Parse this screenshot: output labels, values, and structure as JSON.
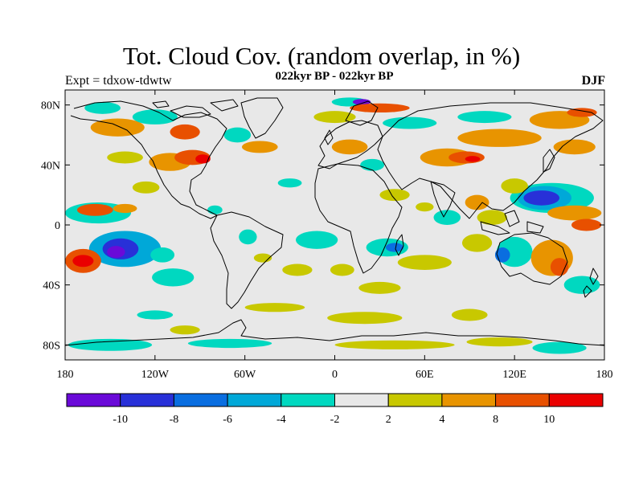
{
  "title": "Tot. Cloud Cov. (random overlap, in %)",
  "subtitle": "022kyr BP - 022kyr BP",
  "expt_label": "Expt = tdxow-tdwtw",
  "season": "DJF",
  "chart_data": {
    "type": "heatmap",
    "title": "Tot. Cloud Cov. (random overlap, in %)",
    "lon_range": [
      -180,
      180
    ],
    "lat_range": [
      -90,
      90
    ],
    "lat_ticks": [
      {
        "value": 80,
        "label": "80N"
      },
      {
        "value": 40,
        "label": "40N"
      },
      {
        "value": 0,
        "label": "0"
      },
      {
        "value": -40,
        "label": "40S"
      },
      {
        "value": -80,
        "label": "80S"
      }
    ],
    "lon_ticks": [
      {
        "value": -180,
        "label": "180"
      },
      {
        "value": -120,
        "label": "120W"
      },
      {
        "value": -60,
        "label": "60W"
      },
      {
        "value": 0,
        "label": "0"
      },
      {
        "value": 60,
        "label": "60E"
      },
      {
        "value": 120,
        "label": "120E"
      },
      {
        "value": 180,
        "label": "180"
      }
    ],
    "colorbar": {
      "bins": [
        {
          "color": "#6a0ad8"
        },
        {
          "color": "#2830d8"
        },
        {
          "color": "#0a6ee0"
        },
        {
          "color": "#00a8d8"
        },
        {
          "color": "#00d8c0"
        },
        {
          "color": "#e8e8e8"
        },
        {
          "color": "#c8c800"
        },
        {
          "color": "#e89400"
        },
        {
          "color": "#e85000"
        },
        {
          "color": "#ea0000"
        }
      ],
      "labels": [
        "-10",
        "-8",
        "-6",
        "-4",
        "-2",
        "2",
        "4",
        "8",
        "10"
      ]
    },
    "regions": [
      {
        "lon": -158,
        "lat": 8,
        "rlon": 22,
        "rlat": 7,
        "value": -3
      },
      {
        "lon": -160,
        "lat": 10,
        "rlon": 12,
        "rlat": 4,
        "value": 9
      },
      {
        "lon": -140,
        "lat": 11,
        "rlon": 8,
        "rlat": 3,
        "value": 5
      },
      {
        "lon": -140,
        "lat": -16,
        "rlon": 24,
        "rlat": 12,
        "value": -5
      },
      {
        "lon": -143,
        "lat": -16,
        "rlon": 12,
        "rlat": 7,
        "value": -9
      },
      {
        "lon": -146,
        "lat": -18,
        "rlon": 6,
        "rlat": 4,
        "value": -11
      },
      {
        "lon": -168,
        "lat": -24,
        "rlon": 12,
        "rlat": 8,
        "value": 9
      },
      {
        "lon": -168,
        "lat": -24,
        "rlon": 7,
        "rlat": 4,
        "value": 11
      },
      {
        "lon": -108,
        "lat": -35,
        "rlon": 14,
        "rlat": 6,
        "value": -3
      },
      {
        "lon": -126,
        "lat": 25,
        "rlon": 9,
        "rlat": 4,
        "value": 3
      },
      {
        "lon": -110,
        "lat": 42,
        "rlon": 14,
        "rlat": 6,
        "value": 5
      },
      {
        "lon": -95,
        "lat": 45,
        "rlon": 12,
        "rlat": 5,
        "value": 9
      },
      {
        "lon": -88,
        "lat": 44,
        "rlon": 5,
        "rlat": 3,
        "value": 11
      },
      {
        "lon": -145,
        "lat": 65,
        "rlon": 18,
        "rlat": 6,
        "value": 4
      },
      {
        "lon": -120,
        "lat": 72,
        "rlon": 15,
        "rlat": 5,
        "value": -3
      },
      {
        "lon": -155,
        "lat": 78,
        "rlon": 12,
        "rlat": 4,
        "value": -3
      },
      {
        "lon": -100,
        "lat": 62,
        "rlon": 10,
        "rlat": 5,
        "value": 8
      },
      {
        "lon": -65,
        "lat": 60,
        "rlon": 9,
        "rlat": 5,
        "value": -3
      },
      {
        "lon": -50,
        "lat": 52,
        "rlon": 12,
        "rlat": 4,
        "value": 4
      },
      {
        "lon": -58,
        "lat": -8,
        "rlon": 6,
        "rlat": 5,
        "value": -3
      },
      {
        "lon": -48,
        "lat": -22,
        "rlon": 6,
        "rlat": 3,
        "value": 3
      },
      {
        "lon": -30,
        "lat": 28,
        "rlon": 8,
        "rlat": 3,
        "value": -3
      },
      {
        "lon": -12,
        "lat": -10,
        "rlon": 14,
        "rlat": 6,
        "value": -3
      },
      {
        "lon": -25,
        "lat": -30,
        "rlon": 10,
        "rlat": 4,
        "value": 3
      },
      {
        "lon": -40,
        "lat": -55,
        "rlon": 20,
        "rlat": 3,
        "value": 3
      },
      {
        "lon": -120,
        "lat": -60,
        "rlon": 12,
        "rlat": 3,
        "value": -3
      },
      {
        "lon": -100,
        "lat": -70,
        "rlon": 10,
        "rlat": 3,
        "value": 3
      },
      {
        "lon": -150,
        "lat": -80,
        "rlon": 28,
        "rlat": 4,
        "value": -3
      },
      {
        "lon": -70,
        "lat": -79,
        "rlon": 28,
        "rlat": 3,
        "value": -3
      },
      {
        "lon": 40,
        "lat": -80,
        "rlon": 40,
        "rlat": 3,
        "value": 3
      },
      {
        "lon": 110,
        "lat": -78,
        "rlon": 22,
        "rlat": 3,
        "value": 3
      },
      {
        "lon": 150,
        "lat": -82,
        "rlon": 18,
        "rlat": 4,
        "value": -3
      },
      {
        "lon": 20,
        "lat": -62,
        "rlon": 25,
        "rlat": 4,
        "value": 3
      },
      {
        "lon": 90,
        "lat": -60,
        "rlon": 12,
        "rlat": 4,
        "value": 3
      },
      {
        "lon": 10,
        "lat": 82,
        "rlon": 12,
        "rlat": 3,
        "value": -4
      },
      {
        "lon": 18,
        "lat": 82,
        "rlon": 6,
        "rlat": 2,
        "value": -11
      },
      {
        "lon": 0,
        "lat": 72,
        "rlon": 14,
        "rlat": 4,
        "value": 3
      },
      {
        "lon": 30,
        "lat": 78,
        "rlon": 20,
        "rlat": 3,
        "value": 8
      },
      {
        "lon": 50,
        "lat": 68,
        "rlon": 18,
        "rlat": 4,
        "value": -3
      },
      {
        "lon": 10,
        "lat": 52,
        "rlon": 12,
        "rlat": 5,
        "value": 5
      },
      {
        "lon": 25,
        "lat": 40,
        "rlon": 8,
        "rlat": 4,
        "value": -3
      },
      {
        "lon": 40,
        "lat": 20,
        "rlon": 10,
        "rlat": 4,
        "value": 3
      },
      {
        "lon": 35,
        "lat": -15,
        "rlon": 14,
        "rlat": 6,
        "value": -4
      },
      {
        "lon": 40,
        "lat": -15,
        "rlon": 6,
        "rlat": 3,
        "value": -7
      },
      {
        "lon": 30,
        "lat": -42,
        "rlon": 14,
        "rlat": 4,
        "value": 3
      },
      {
        "lon": 60,
        "lat": -25,
        "rlon": 18,
        "rlat": 5,
        "value": 3
      },
      {
        "lon": 75,
        "lat": 45,
        "rlon": 18,
        "rlat": 6,
        "value": 5
      },
      {
        "lon": 88,
        "lat": 45,
        "rlon": 12,
        "rlat": 4,
        "value": 9
      },
      {
        "lon": 92,
        "lat": 44,
        "rlon": 5,
        "rlat": 2,
        "value": 11
      },
      {
        "lon": 110,
        "lat": 58,
        "rlon": 28,
        "rlat": 6,
        "value": 4
      },
      {
        "lon": 100,
        "lat": 72,
        "rlon": 18,
        "rlat": 4,
        "value": -3
      },
      {
        "lon": 150,
        "lat": 70,
        "rlon": 20,
        "rlat": 6,
        "value": 5
      },
      {
        "lon": 165,
        "lat": 75,
        "rlon": 10,
        "rlat": 3,
        "value": 9
      },
      {
        "lon": 160,
        "lat": 52,
        "rlon": 14,
        "rlat": 5,
        "value": 4
      },
      {
        "lon": 145,
        "lat": 18,
        "rlon": 28,
        "rlat": 10,
        "value": -3
      },
      {
        "lon": 140,
        "lat": 18,
        "rlon": 18,
        "rlat": 8,
        "value": -5
      },
      {
        "lon": 138,
        "lat": 18,
        "rlon": 12,
        "rlat": 5,
        "value": -9
      },
      {
        "lon": 120,
        "lat": 26,
        "rlon": 9,
        "rlat": 5,
        "value": 3
      },
      {
        "lon": 160,
        "lat": 8,
        "rlon": 18,
        "rlat": 5,
        "value": 5
      },
      {
        "lon": 168,
        "lat": 0,
        "rlon": 10,
        "rlat": 4,
        "value": 8
      },
      {
        "lon": 120,
        "lat": -18,
        "rlon": 12,
        "rlat": 10,
        "value": -4
      },
      {
        "lon": 112,
        "lat": -20,
        "rlon": 5,
        "rlat": 5,
        "value": -7
      },
      {
        "lon": 145,
        "lat": -22,
        "rlon": 14,
        "rlat": 12,
        "value": 5
      },
      {
        "lon": 150,
        "lat": -28,
        "rlon": 6,
        "rlat": 6,
        "value": 8
      },
      {
        "lon": 165,
        "lat": -40,
        "rlon": 12,
        "rlat": 6,
        "value": -3
      },
      {
        "lon": 95,
        "lat": -12,
        "rlon": 10,
        "rlat": 6,
        "value": 3
      },
      {
        "lon": 75,
        "lat": 5,
        "rlon": 9,
        "rlat": 5,
        "value": -3
      },
      {
        "lon": 60,
        "lat": 12,
        "rlon": 6,
        "rlat": 3,
        "value": 3
      },
      {
        "lon": 95,
        "lat": 15,
        "rlon": 8,
        "rlat": 5,
        "value": 5
      },
      {
        "lon": 105,
        "lat": 5,
        "rlon": 10,
        "rlat": 5,
        "value": 3
      },
      {
        "lon": 5,
        "lat": -30,
        "rlon": 8,
        "rlat": 4,
        "value": 3
      },
      {
        "lon": -80,
        "lat": 10,
        "rlon": 5,
        "rlat": 3,
        "value": -3
      },
      {
        "lon": -115,
        "lat": -20,
        "rlon": 8,
        "rlat": 5,
        "value": -3
      },
      {
        "lon": -140,
        "lat": 45,
        "rlon": 12,
        "rlat": 4,
        "value": 3
      }
    ]
  }
}
